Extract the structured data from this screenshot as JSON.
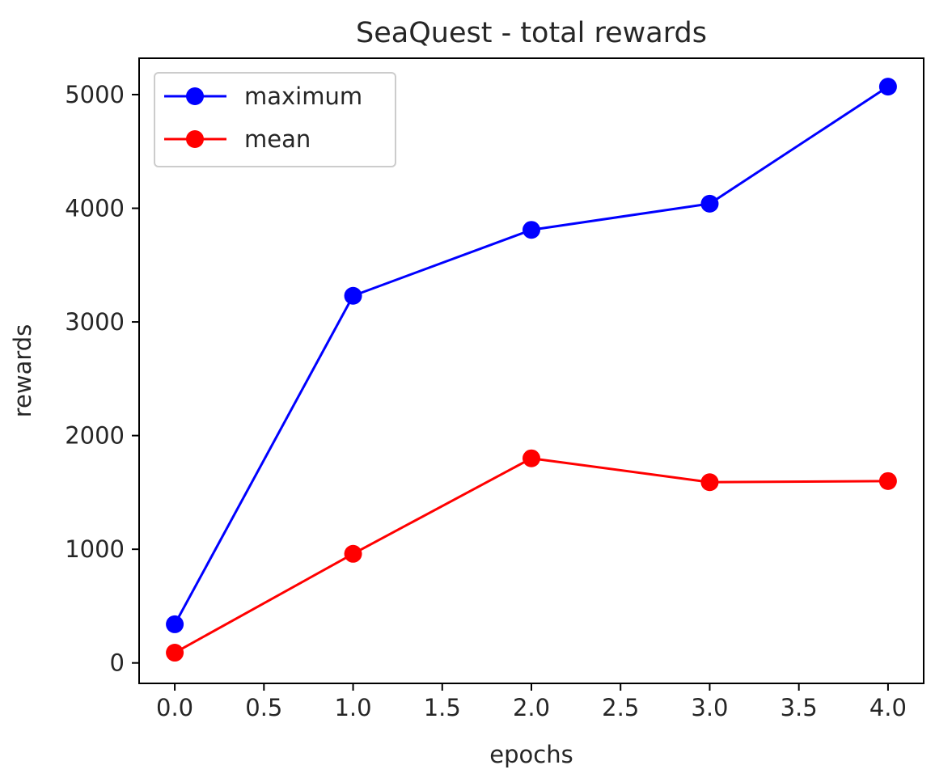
{
  "chart_data": {
    "type": "line",
    "title": "SeaQuest - total rewards",
    "xlabel": "epochs",
    "ylabel": "rewards",
    "x": [
      0,
      1,
      2,
      3,
      4
    ],
    "xlim": [
      -0.2,
      4.2
    ],
    "ylim": [
      -180,
      5320
    ],
    "xticks": [
      0,
      0.5,
      1,
      1.5,
      2,
      2.5,
      3,
      3.5,
      4
    ],
    "xtick_labels": [
      "0.0",
      "0.5",
      "1.0",
      "1.5",
      "2.0",
      "2.5",
      "3.0",
      "3.5",
      "4.0"
    ],
    "yticks": [
      0,
      1000,
      2000,
      3000,
      4000,
      5000
    ],
    "ytick_labels": [
      "0",
      "1000",
      "2000",
      "3000",
      "4000",
      "5000"
    ],
    "grid": false,
    "legend_position": "top-left",
    "series": [
      {
        "name": "maximum",
        "color": "#0000ff",
        "marker": "circle",
        "values": [
          340,
          3230,
          3810,
          4040,
          5070
        ]
      },
      {
        "name": "mean",
        "color": "#ff0000",
        "marker": "circle",
        "values": [
          90,
          960,
          1800,
          1590,
          1600
        ]
      }
    ]
  }
}
